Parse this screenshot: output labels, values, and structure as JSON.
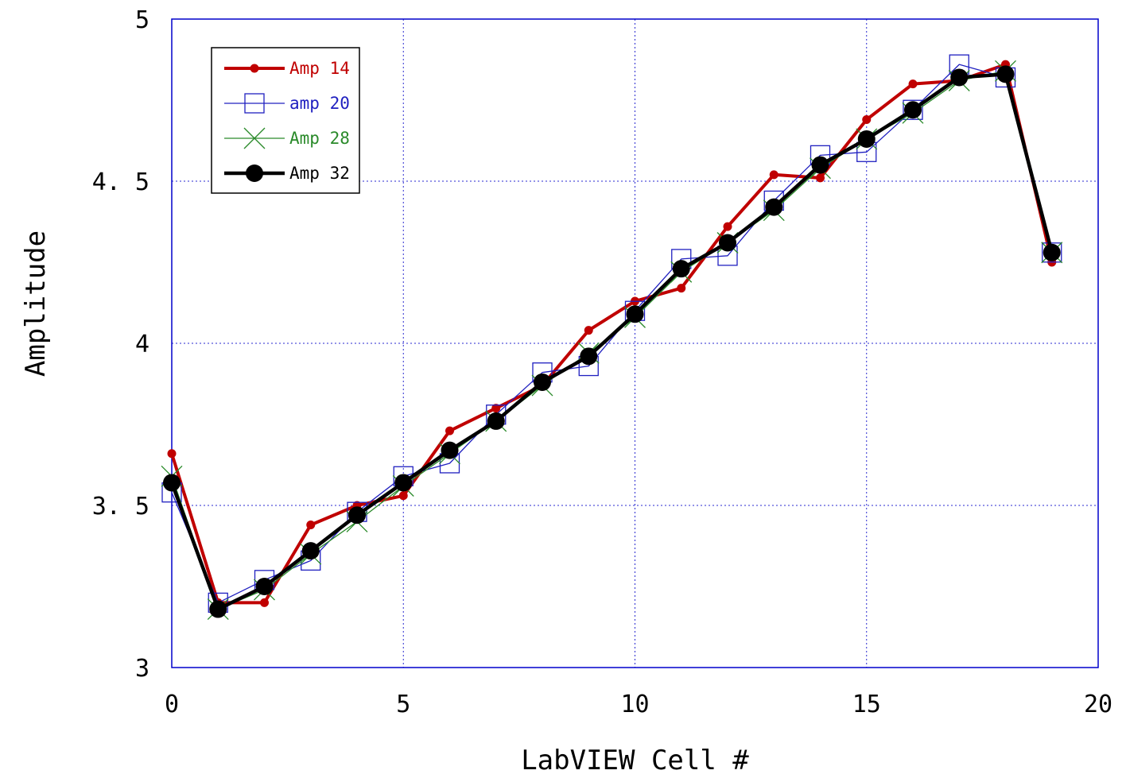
{
  "chart_data": {
    "type": "line",
    "title": "",
    "xlabel": "LabVIEW Cell #",
    "ylabel": "Amplitude",
    "xlim": [
      0,
      20
    ],
    "ylim": [
      3,
      5
    ],
    "xticks": [
      0,
      5,
      10,
      15,
      20
    ],
    "yticks": [
      3,
      3.5,
      4,
      4.5,
      5
    ],
    "xtick_labels": [
      "0",
      "5",
      "10",
      "15",
      "20"
    ],
    "ytick_labels": [
      "3",
      "3. 5",
      "4",
      "4. 5",
      "5"
    ],
    "grid": true,
    "legend_position": "top-left",
    "x": [
      0,
      1,
      2,
      3,
      4,
      5,
      6,
      7,
      8,
      9,
      10,
      11,
      12,
      13,
      14,
      15,
      16,
      17,
      18,
      19
    ],
    "series": [
      {
        "name": "Amp 14",
        "color": "#c00000",
        "marker": "dot",
        "values": [
          3.66,
          3.2,
          3.2,
          3.44,
          3.5,
          3.53,
          3.73,
          3.8,
          3.87,
          4.04,
          4.13,
          4.17,
          4.36,
          4.52,
          4.51,
          4.69,
          4.8,
          4.81,
          4.86,
          4.25
        ]
      },
      {
        "name": "amp 20",
        "color": "#2020c0",
        "marker": "square",
        "values": [
          3.54,
          3.2,
          3.27,
          3.33,
          3.48,
          3.59,
          3.63,
          3.78,
          3.91,
          3.93,
          4.1,
          4.26,
          4.27,
          4.44,
          4.58,
          4.59,
          4.72,
          4.86,
          4.82,
          4.28
        ]
      },
      {
        "name": "Amp 28",
        "color": "#2a8a2a",
        "marker": "x",
        "values": [
          3.59,
          3.18,
          3.24,
          3.35,
          3.45,
          3.56,
          3.66,
          3.76,
          3.87,
          3.97,
          4.08,
          4.22,
          4.31,
          4.41,
          4.54,
          4.63,
          4.71,
          4.81,
          4.84,
          4.28
        ]
      },
      {
        "name": "Amp 32",
        "color": "#000000",
        "marker": "big-dot",
        "values": [
          3.57,
          3.18,
          3.25,
          3.36,
          3.47,
          3.57,
          3.67,
          3.76,
          3.88,
          3.96,
          4.09,
          4.23,
          4.31,
          4.42,
          4.55,
          4.63,
          4.72,
          4.82,
          4.83,
          4.28
        ]
      }
    ]
  }
}
